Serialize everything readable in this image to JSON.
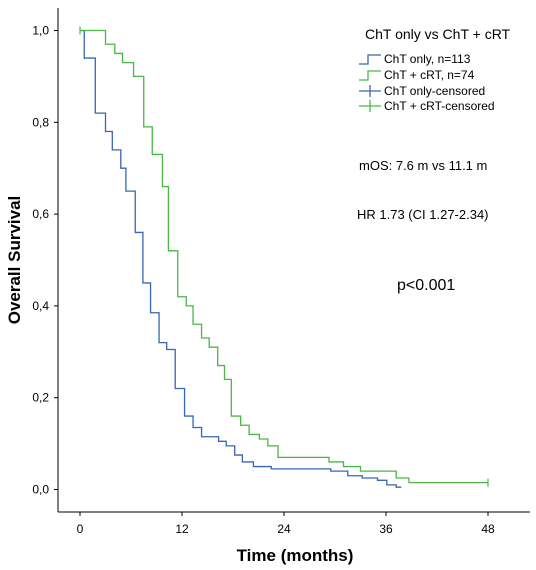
{
  "chart_data": {
    "type": "line",
    "subtype": "kaplan-meier step",
    "legend_title": "ChT only vs ChT + cRT",
    "xlabel": "Time (months)",
    "ylabel": "Overall Survival",
    "xlim": [
      0,
      50
    ],
    "ylim": [
      0,
      1.0
    ],
    "x_ticks": [
      0,
      12,
      24,
      36,
      48
    ],
    "x_tick_labels": [
      "0",
      "12",
      "24",
      "36",
      "48"
    ],
    "y_ticks": [
      0.0,
      0.2,
      0.4,
      0.6,
      0.8,
      1.0
    ],
    "y_tick_labels": [
      "0,0",
      "0,2",
      "0,4",
      "0,6",
      "0,8",
      "1,0"
    ],
    "grid": false,
    "legend_position": "top-right",
    "series": [
      {
        "name": "ChT only, n=113",
        "color": "#3a64b4",
        "steps": [
          [
            0,
            1.0
          ],
          [
            0.5,
            0.94
          ],
          [
            1.8,
            0.82
          ],
          [
            3.0,
            0.78
          ],
          [
            3.8,
            0.74
          ],
          [
            4.8,
            0.7
          ],
          [
            5.4,
            0.65
          ],
          [
            6.5,
            0.56
          ],
          [
            7.4,
            0.45
          ],
          [
            8.3,
            0.385
          ],
          [
            9.3,
            0.32
          ],
          [
            10.2,
            0.305
          ],
          [
            11.2,
            0.22
          ],
          [
            12.3,
            0.16
          ],
          [
            13.3,
            0.135
          ],
          [
            14.3,
            0.115
          ],
          [
            16.3,
            0.105
          ],
          [
            17.2,
            0.095
          ],
          [
            18.2,
            0.075
          ],
          [
            19.1,
            0.06
          ],
          [
            20.4,
            0.05
          ],
          [
            22.5,
            0.045
          ],
          [
            29.5,
            0.04
          ],
          [
            31.5,
            0.03
          ],
          [
            33.2,
            0.025
          ],
          [
            35.0,
            0.02
          ],
          [
            36.1,
            0.01
          ],
          [
            37.2,
            0.005
          ]
        ],
        "end_x": 37.8
      },
      {
        "name": "ChT + cRT, n=74",
        "color": "#4cb648",
        "steps": [
          [
            0,
            1.0
          ],
          [
            3.0,
            0.97
          ],
          [
            4.1,
            0.95
          ],
          [
            5.0,
            0.93
          ],
          [
            6.3,
            0.9
          ],
          [
            7.5,
            0.79
          ],
          [
            8.5,
            0.73
          ],
          [
            9.7,
            0.66
          ],
          [
            10.4,
            0.52
          ],
          [
            11.5,
            0.42
          ],
          [
            12.5,
            0.4
          ],
          [
            13.3,
            0.36
          ],
          [
            14.3,
            0.33
          ],
          [
            15.2,
            0.31
          ],
          [
            16.2,
            0.27
          ],
          [
            17.0,
            0.24
          ],
          [
            17.8,
            0.16
          ],
          [
            18.9,
            0.14
          ],
          [
            19.9,
            0.12
          ],
          [
            21.1,
            0.11
          ],
          [
            22.1,
            0.095
          ],
          [
            23.3,
            0.07
          ],
          [
            29.3,
            0.06
          ],
          [
            31.0,
            0.05
          ],
          [
            33.0,
            0.04
          ],
          [
            37.2,
            0.025
          ],
          [
            38.7,
            0.015
          ],
          [
            41.0,
            0.015
          ]
        ],
        "end_x": 48.0,
        "censored_x": [
          0,
          48.0
        ]
      }
    ],
    "legend_entries": [
      "ChT only, n=113",
      "ChT + cRT, n=74",
      "ChT only-censored",
      "ChT + cRT-censored"
    ],
    "annotations": [
      "mOS: 7.6 m vs 11.1 m",
      "HR 1.73 (CI 1.27-2.34)",
      "p<0.001"
    ]
  }
}
